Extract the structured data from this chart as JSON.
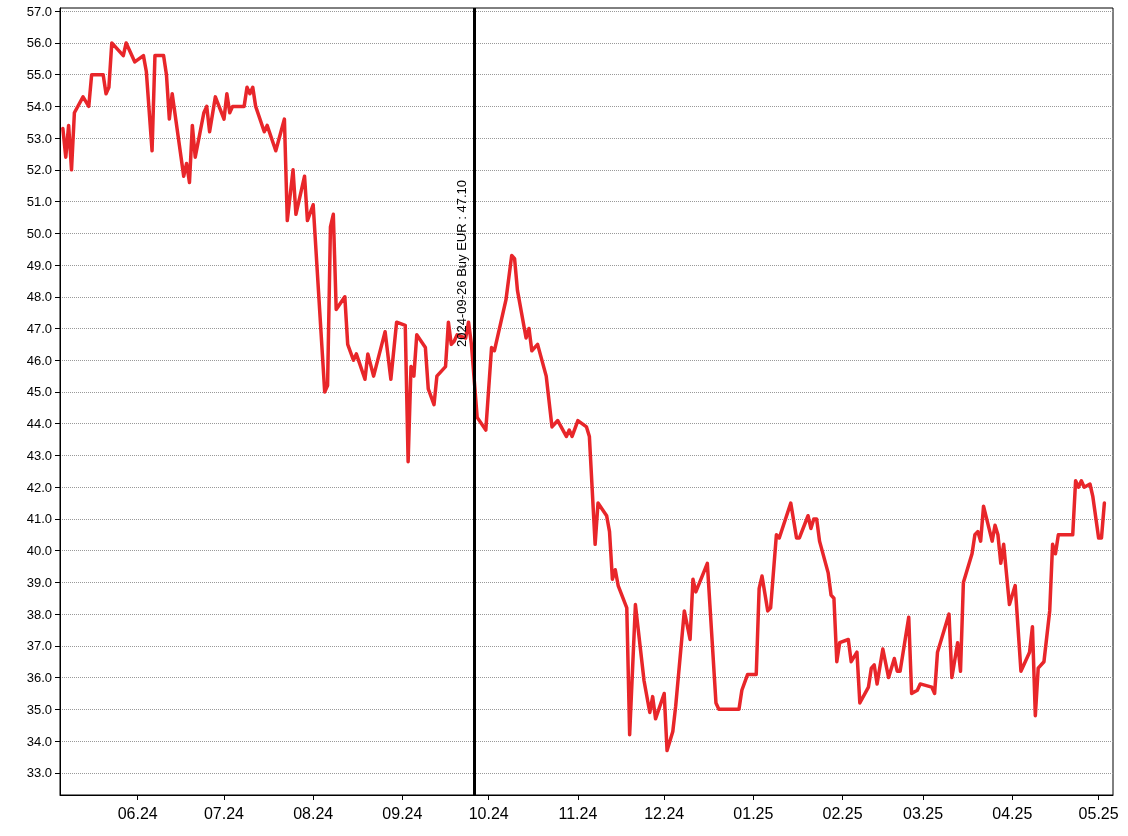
{
  "chart_data": {
    "type": "line",
    "x": [
      "2024-05-06",
      "2024-05-07",
      "2024-05-08",
      "2024-05-09",
      "2024-05-10",
      "2024-05-13",
      "2024-05-15",
      "2024-05-16",
      "2024-05-20",
      "2024-05-21",
      "2024-05-22",
      "2024-05-23",
      "2024-05-27",
      "2024-05-28",
      "2024-05-31",
      "2024-06-03",
      "2024-06-04",
      "2024-06-06",
      "2024-06-07",
      "2024-06-10",
      "2024-06-11",
      "2024-06-12",
      "2024-06-13",
      "2024-06-17",
      "2024-06-18",
      "2024-06-19",
      "2024-06-20",
      "2024-06-21",
      "2024-06-24",
      "2024-06-25",
      "2024-06-26",
      "2024-06-28",
      "2024-07-01",
      "2024-07-02",
      "2024-07-03",
      "2024-07-04",
      "2024-07-08",
      "2024-07-09",
      "2024-07-10",
      "2024-07-11",
      "2024-07-12",
      "2024-07-15",
      "2024-07-16",
      "2024-07-19",
      "2024-07-22",
      "2024-07-23",
      "2024-07-25",
      "2024-07-26",
      "2024-07-29",
      "2024-07-30",
      "2024-08-01",
      "2024-08-05",
      "2024-08-06",
      "2024-08-07",
      "2024-08-08",
      "2024-08-09",
      "2024-08-12",
      "2024-08-13",
      "2024-08-15",
      "2024-08-16",
      "2024-08-19",
      "2024-08-20",
      "2024-08-22",
      "2024-08-26",
      "2024-08-28",
      "2024-08-30",
      "2024-09-02",
      "2024-09-03",
      "2024-09-04",
      "2024-09-05",
      "2024-09-06",
      "2024-09-09",
      "2024-09-10",
      "2024-09-12",
      "2024-09-13",
      "2024-09-16",
      "2024-09-17",
      "2024-09-18",
      "2024-09-19",
      "2024-09-20",
      "2024-09-23",
      "2024-09-24",
      "2024-09-25",
      "2024-09-27",
      "2024-09-30",
      "2024-10-02",
      "2024-10-03",
      "2024-10-07",
      "2024-10-09",
      "2024-10-10",
      "2024-10-11",
      "2024-10-14",
      "2024-10-15",
      "2024-10-16",
      "2024-10-18",
      "2024-10-21",
      "2024-10-23",
      "2024-10-25",
      "2024-10-28",
      "2024-10-29",
      "2024-10-30",
      "2024-11-01",
      "2024-11-04",
      "2024-11-05",
      "2024-11-07",
      "2024-11-08",
      "2024-11-11",
      "2024-11-12",
      "2024-11-13",
      "2024-11-14",
      "2024-11-15",
      "2024-11-18",
      "2024-11-19",
      "2024-11-21",
      "2024-11-24",
      "2024-11-26",
      "2024-11-27",
      "2024-11-28",
      "2024-12-01",
      "2024-12-02",
      "2024-12-04",
      "2024-12-05",
      "2024-12-08",
      "2024-12-10",
      "2024-12-11",
      "2024-12-12",
      "2024-12-16",
      "2024-12-19",
      "2024-12-20",
      "2024-12-27",
      "2024-12-28",
      "2024-12-30",
      "2025-01-02",
      "2025-01-03",
      "2025-01-04",
      "2025-01-06",
      "2025-01-07",
      "2025-01-09",
      "2025-01-10",
      "2025-01-14",
      "2025-01-16",
      "2025-01-17",
      "2025-01-20",
      "2025-01-21",
      "2025-01-22",
      "2025-01-23",
      "2025-01-24",
      "2025-01-27",
      "2025-01-28",
      "2025-01-29",
      "2025-01-30",
      "2025-01-31",
      "2025-02-03",
      "2025-02-04",
      "2025-02-06",
      "2025-02-07",
      "2025-02-10",
      "2025-02-11",
      "2025-02-12",
      "2025-02-13",
      "2025-02-15",
      "2025-02-17",
      "2025-02-19",
      "2025-02-20",
      "2025-02-21",
      "2025-02-24",
      "2025-02-25",
      "2025-02-27",
      "2025-02-28",
      "2025-03-04",
      "2025-03-05",
      "2025-03-06",
      "2025-03-10",
      "2025-03-11",
      "2025-03-13",
      "2025-03-14",
      "2025-03-15",
      "2025-03-18",
      "2025-03-19",
      "2025-03-20",
      "2025-03-21",
      "2025-03-22",
      "2025-03-25",
      "2025-03-26",
      "2025-03-27",
      "2025-03-28",
      "2025-03-29",
      "2025-03-31",
      "2025-04-02",
      "2025-04-04",
      "2025-04-07",
      "2025-04-08",
      "2025-04-09",
      "2025-04-10",
      "2025-04-12",
      "2025-04-14",
      "2025-04-15",
      "2025-04-16",
      "2025-04-17",
      "2025-04-22",
      "2025-04-23",
      "2025-04-24",
      "2025-04-25",
      "2025-04-26",
      "2025-04-28",
      "2025-04-29",
      "2025-05-01",
      "2025-05-02",
      "2025-05-03"
    ],
    "series": [
      {
        "color": "#e8262a",
        "values": [
          53.3,
          52.4,
          53.4,
          52.0,
          53.8,
          54.3,
          54.0,
          55.0,
          55.0,
          54.4,
          54.6,
          56.0,
          55.6,
          56.0,
          55.4,
          55.6,
          55.1,
          52.6,
          55.6,
          55.6,
          55.0,
          53.6,
          54.4,
          51.8,
          52.2,
          51.6,
          53.4,
          52.4,
          53.8,
          54.0,
          53.2,
          54.3,
          53.6,
          54.4,
          53.8,
          54.0,
          54.0,
          54.6,
          54.4,
          54.6,
          54.0,
          53.2,
          53.4,
          52.6,
          53.6,
          50.4,
          52.0,
          50.6,
          51.8,
          50.4,
          50.9,
          45.0,
          45.2,
          50.2,
          50.6,
          47.6,
          48.0,
          46.5,
          46.0,
          46.2,
          45.4,
          46.2,
          45.5,
          46.9,
          45.4,
          47.2,
          47.1,
          42.8,
          45.8,
          45.5,
          46.8,
          46.4,
          45.1,
          44.6,
          45.5,
          45.8,
          47.2,
          46.5,
          46.6,
          46.8,
          46.7,
          47.2,
          46.5,
          44.2,
          43.8,
          46.4,
          46.3,
          47.9,
          49.3,
          49.2,
          48.2,
          46.7,
          47.0,
          46.3,
          46.5,
          45.5,
          43.9,
          44.1,
          43.6,
          43.8,
          43.6,
          44.1,
          43.9,
          43.6,
          40.2,
          41.5,
          41.1,
          40.6,
          39.1,
          39.4,
          38.9,
          38.2,
          34.2,
          38.3,
          35.9,
          34.9,
          35.4,
          34.7,
          35.5,
          33.7,
          34.3,
          35.1,
          38.1,
          37.2,
          39.1,
          38.7,
          39.6,
          35.2,
          35.0,
          35.0,
          35.6,
          36.1,
          36.1,
          38.8,
          39.2,
          38.1,
          38.2,
          40.5,
          40.4,
          41.5,
          40.4,
          40.4,
          41.1,
          40.7,
          41.0,
          41.0,
          40.3,
          39.3,
          38.6,
          38.5,
          36.5,
          37.1,
          37.2,
          36.5,
          36.8,
          35.2,
          35.7,
          36.3,
          36.4,
          35.8,
          36.9,
          36.0,
          36.6,
          36.2,
          36.2,
          37.9,
          35.5,
          35.6,
          35.8,
          35.7,
          35.5,
          36.8,
          38.0,
          36.0,
          37.1,
          36.2,
          39.0,
          39.9,
          40.5,
          40.6,
          40.3,
          41.4,
          40.3,
          40.8,
          40.5,
          39.6,
          40.2,
          38.3,
          38.9,
          36.2,
          36.8,
          37.6,
          34.8,
          36.3,
          36.5,
          38.1,
          40.2,
          39.9,
          40.5,
          40.5,
          42.2,
          42.0,
          42.2,
          42.0,
          42.1,
          41.7,
          40.4,
          40.4,
          41.5
        ]
      }
    ],
    "xlim": [
      "2024-05-05",
      "2025-05-06"
    ],
    "xticks": [
      {
        "value": "2024-06-01",
        "label": "06.24"
      },
      {
        "value": "2024-07-01",
        "label": "07.24"
      },
      {
        "value": "2024-08-01",
        "label": "08.24"
      },
      {
        "value": "2024-09-01",
        "label": "09.24"
      },
      {
        "value": "2024-10-01",
        "label": "10.24"
      },
      {
        "value": "2024-11-01",
        "label": "11.24"
      },
      {
        "value": "2024-12-01",
        "label": "12.24"
      },
      {
        "value": "2025-01-01",
        "label": "01.25"
      },
      {
        "value": "2025-02-01",
        "label": "02.25"
      },
      {
        "value": "2025-03-01",
        "label": "03.25"
      },
      {
        "value": "2025-04-01",
        "label": "04.25"
      },
      {
        "value": "2025-05-01",
        "label": "05.25"
      }
    ],
    "ylim": [
      32.3,
      57.1
    ],
    "yticks": [
      {
        "value": 33,
        "label": "33.0"
      },
      {
        "value": 34,
        "label": "34.0"
      },
      {
        "value": 35,
        "label": "35.0"
      },
      {
        "value": 36,
        "label": "36.0"
      },
      {
        "value": 37,
        "label": "37.0"
      },
      {
        "value": 38,
        "label": "38.0"
      },
      {
        "value": 39,
        "label": "39.0"
      },
      {
        "value": 40,
        "label": "40.0"
      },
      {
        "value": 41,
        "label": "41.0"
      },
      {
        "value": 42,
        "label": "42.0"
      },
      {
        "value": 43,
        "label": "43.0"
      },
      {
        "value": 44,
        "label": "44.0"
      },
      {
        "value": 45,
        "label": "45.0"
      },
      {
        "value": 46,
        "label": "46.0"
      },
      {
        "value": 47,
        "label": "47.0"
      },
      {
        "value": 48,
        "label": "48.0"
      },
      {
        "value": 49,
        "label": "49.0"
      },
      {
        "value": 50,
        "label": "50.0"
      },
      {
        "value": 51,
        "label": "51.0"
      },
      {
        "value": 52,
        "label": "52.0"
      },
      {
        "value": 53,
        "label": "53.0"
      },
      {
        "value": 54,
        "label": "54.0"
      },
      {
        "value": 55,
        "label": "55.0"
      },
      {
        "value": 56,
        "label": "56.0"
      },
      {
        "value": 57,
        "label": "57.0"
      }
    ],
    "ref_lines": [
      {
        "axis": "x",
        "value": "2024-09-26",
        "label": "2024-09-26 Buy EUR : 47.10",
        "color": "#000000",
        "line_style": "solid"
      }
    ],
    "grid": "y",
    "marker": "none",
    "line_style": "solid"
  }
}
